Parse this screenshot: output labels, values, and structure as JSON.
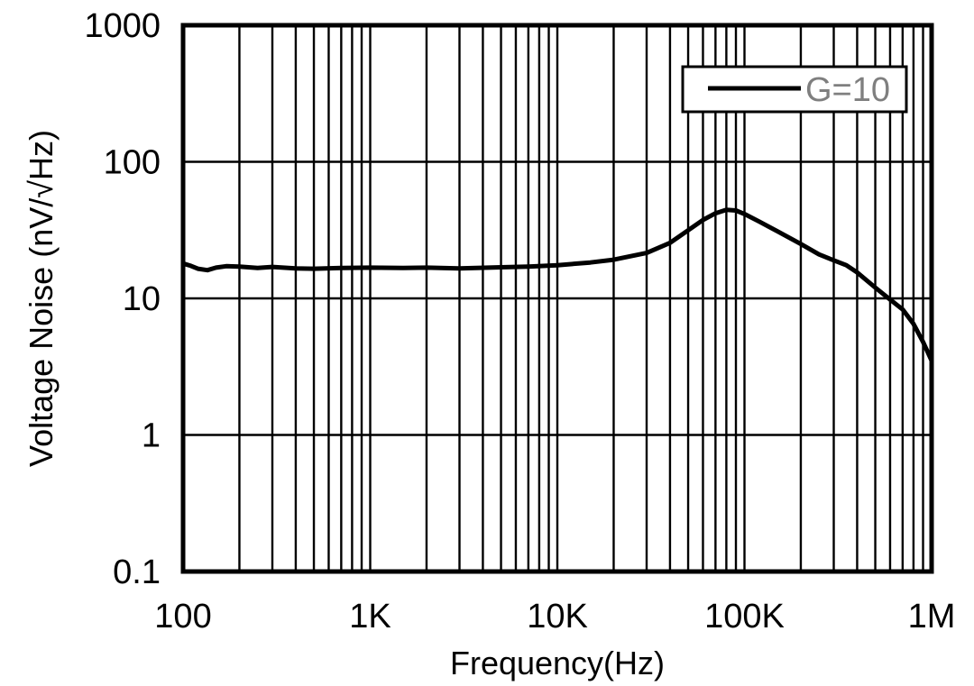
{
  "chart_data": {
    "type": "line",
    "xlabel": "Frequency(Hz)",
    "ylabel": "Voltage Noise (nV/√Hz)",
    "x_scale": "log",
    "y_scale": "log",
    "xlim": [
      100,
      1000000
    ],
    "ylim": [
      0.1,
      1000
    ],
    "x_ticks": [
      {
        "value": 100,
        "label": "100"
      },
      {
        "value": 1000,
        "label": "1K"
      },
      {
        "value": 10000,
        "label": "10K"
      },
      {
        "value": 100000,
        "label": "100K"
      },
      {
        "value": 1000000,
        "label": "1M"
      }
    ],
    "y_ticks": [
      {
        "value": 0.1,
        "label": "0.1"
      },
      {
        "value": 1,
        "label": "1"
      },
      {
        "value": 10,
        "label": "10"
      },
      {
        "value": 100,
        "label": "100"
      },
      {
        "value": 1000,
        "label": "1000"
      }
    ],
    "grid": true,
    "legend_position": "top-right",
    "series": [
      {
        "name": "G=10",
        "color": "#000000",
        "x": [
          100,
          110,
          120,
          135,
          150,
          170,
          200,
          250,
          300,
          400,
          500,
          700,
          1000,
          1500,
          2000,
          3000,
          5000,
          7000,
          10000,
          15000,
          20000,
          30000,
          40000,
          50000,
          60000,
          70000,
          80000,
          90000,
          100000,
          120000,
          150000,
          200000,
          250000,
          300000,
          350000,
          400000,
          500000,
          600000,
          700000,
          800000,
          900000,
          1000000
        ],
        "y": [
          18,
          17.3,
          16.5,
          16.1,
          16.8,
          17.2,
          17.1,
          16.7,
          17.0,
          16.6,
          16.5,
          16.7,
          16.8,
          16.7,
          16.8,
          16.6,
          16.9,
          17.1,
          17.5,
          18.3,
          19.2,
          21.5,
          25.5,
          31.5,
          37.5,
          42,
          44.5,
          44,
          41.5,
          36.5,
          31,
          25,
          21,
          19,
          17.5,
          15.5,
          12,
          9.8,
          8.3,
          6.5,
          4.8,
          3.5
        ]
      }
    ]
  }
}
